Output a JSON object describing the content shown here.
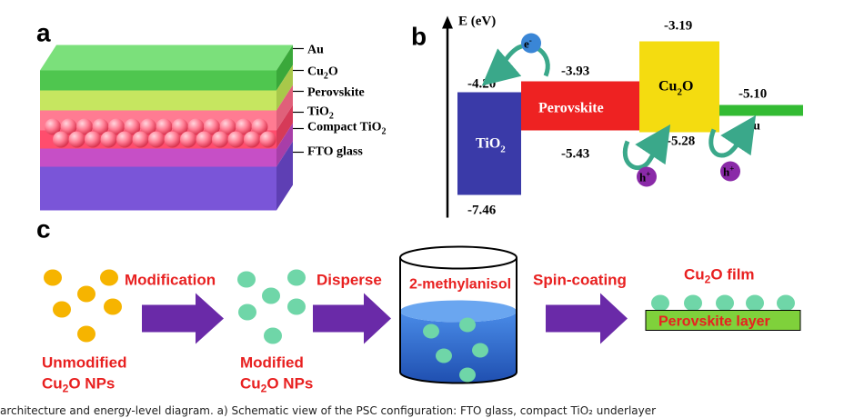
{
  "panel_labels": {
    "a": "a",
    "b": "b",
    "c": "c"
  },
  "panel_a": {
    "layers": [
      {
        "label": "Au",
        "sub": "",
        "post": "",
        "color": "#5cd05c"
      },
      {
        "label": "Cu",
        "sub": "2",
        "post": "O",
        "color": "#c6e660"
      },
      {
        "label": "Perovskite",
        "sub": "",
        "post": "",
        "color": "#ff6f86"
      },
      {
        "label": "TiO",
        "sub": "2",
        "post": "",
        "color": "#ff4d6d"
      },
      {
        "label": "Compact TiO",
        "sub": "2",
        "post": "",
        "color": "#c64fc6"
      },
      {
        "label": "FTO glass",
        "sub": "",
        "post": "",
        "color": "#7a55d8"
      }
    ]
  },
  "panel_b": {
    "axis_label": "E (eV)",
    "blocks": [
      {
        "name": "TiO",
        "sub": "2",
        "top": "-4.20",
        "bottom": "-7.46",
        "color": "#3a3aa8",
        "text_color": "#ffffff"
      },
      {
        "name": "Perovskite",
        "sub": "",
        "top": "-3.93",
        "bottom": "-5.43",
        "color": "#ee2222",
        "text_color": "#ffffff"
      },
      {
        "name": "Cu",
        "sub": "2",
        "post": "O",
        "top": "-3.19",
        "bottom": "-5.28",
        "color": "#f4dc10",
        "text_color": "#000000"
      },
      {
        "name": "Au",
        "sub": "",
        "top": "-5.10",
        "color": "#33bb33",
        "text_color": "#000000"
      }
    ],
    "electron": "e",
    "electron_sup": "-",
    "hole": "h",
    "hole_sup": "+"
  },
  "panel_c": {
    "steps": [
      {
        "label": "Modification"
      },
      {
        "label": "Disperse"
      },
      {
        "label": "Spin-coating"
      }
    ],
    "unmodified_line1": "Unmodified",
    "unmodified_line2_pre": "Cu",
    "unmodified_line2_sub": "2",
    "unmodified_line2_post": "O NPs",
    "modified_line1": "Modified",
    "modified_line2_pre": "Cu",
    "modified_line2_sub": "2",
    "modified_line2_post": "O NPs",
    "solvent": "2-methylanisol",
    "film_pre": "Cu",
    "film_sub": "2",
    "film_post": "O film",
    "substrate": "Perovskite layer",
    "colors": {
      "text_red": "#e82020",
      "arrow": "#6a2aa8",
      "np_orange": "#f6b400",
      "np_teal": "#6fd6a8",
      "liquid": "#2f6fd6",
      "film_green": "#7fd13b"
    }
  },
  "caption": "architecture and energy-level diagram. a) Schematic view of the PSC configuration: FTO glass, compact TiO₂ underlayer"
}
